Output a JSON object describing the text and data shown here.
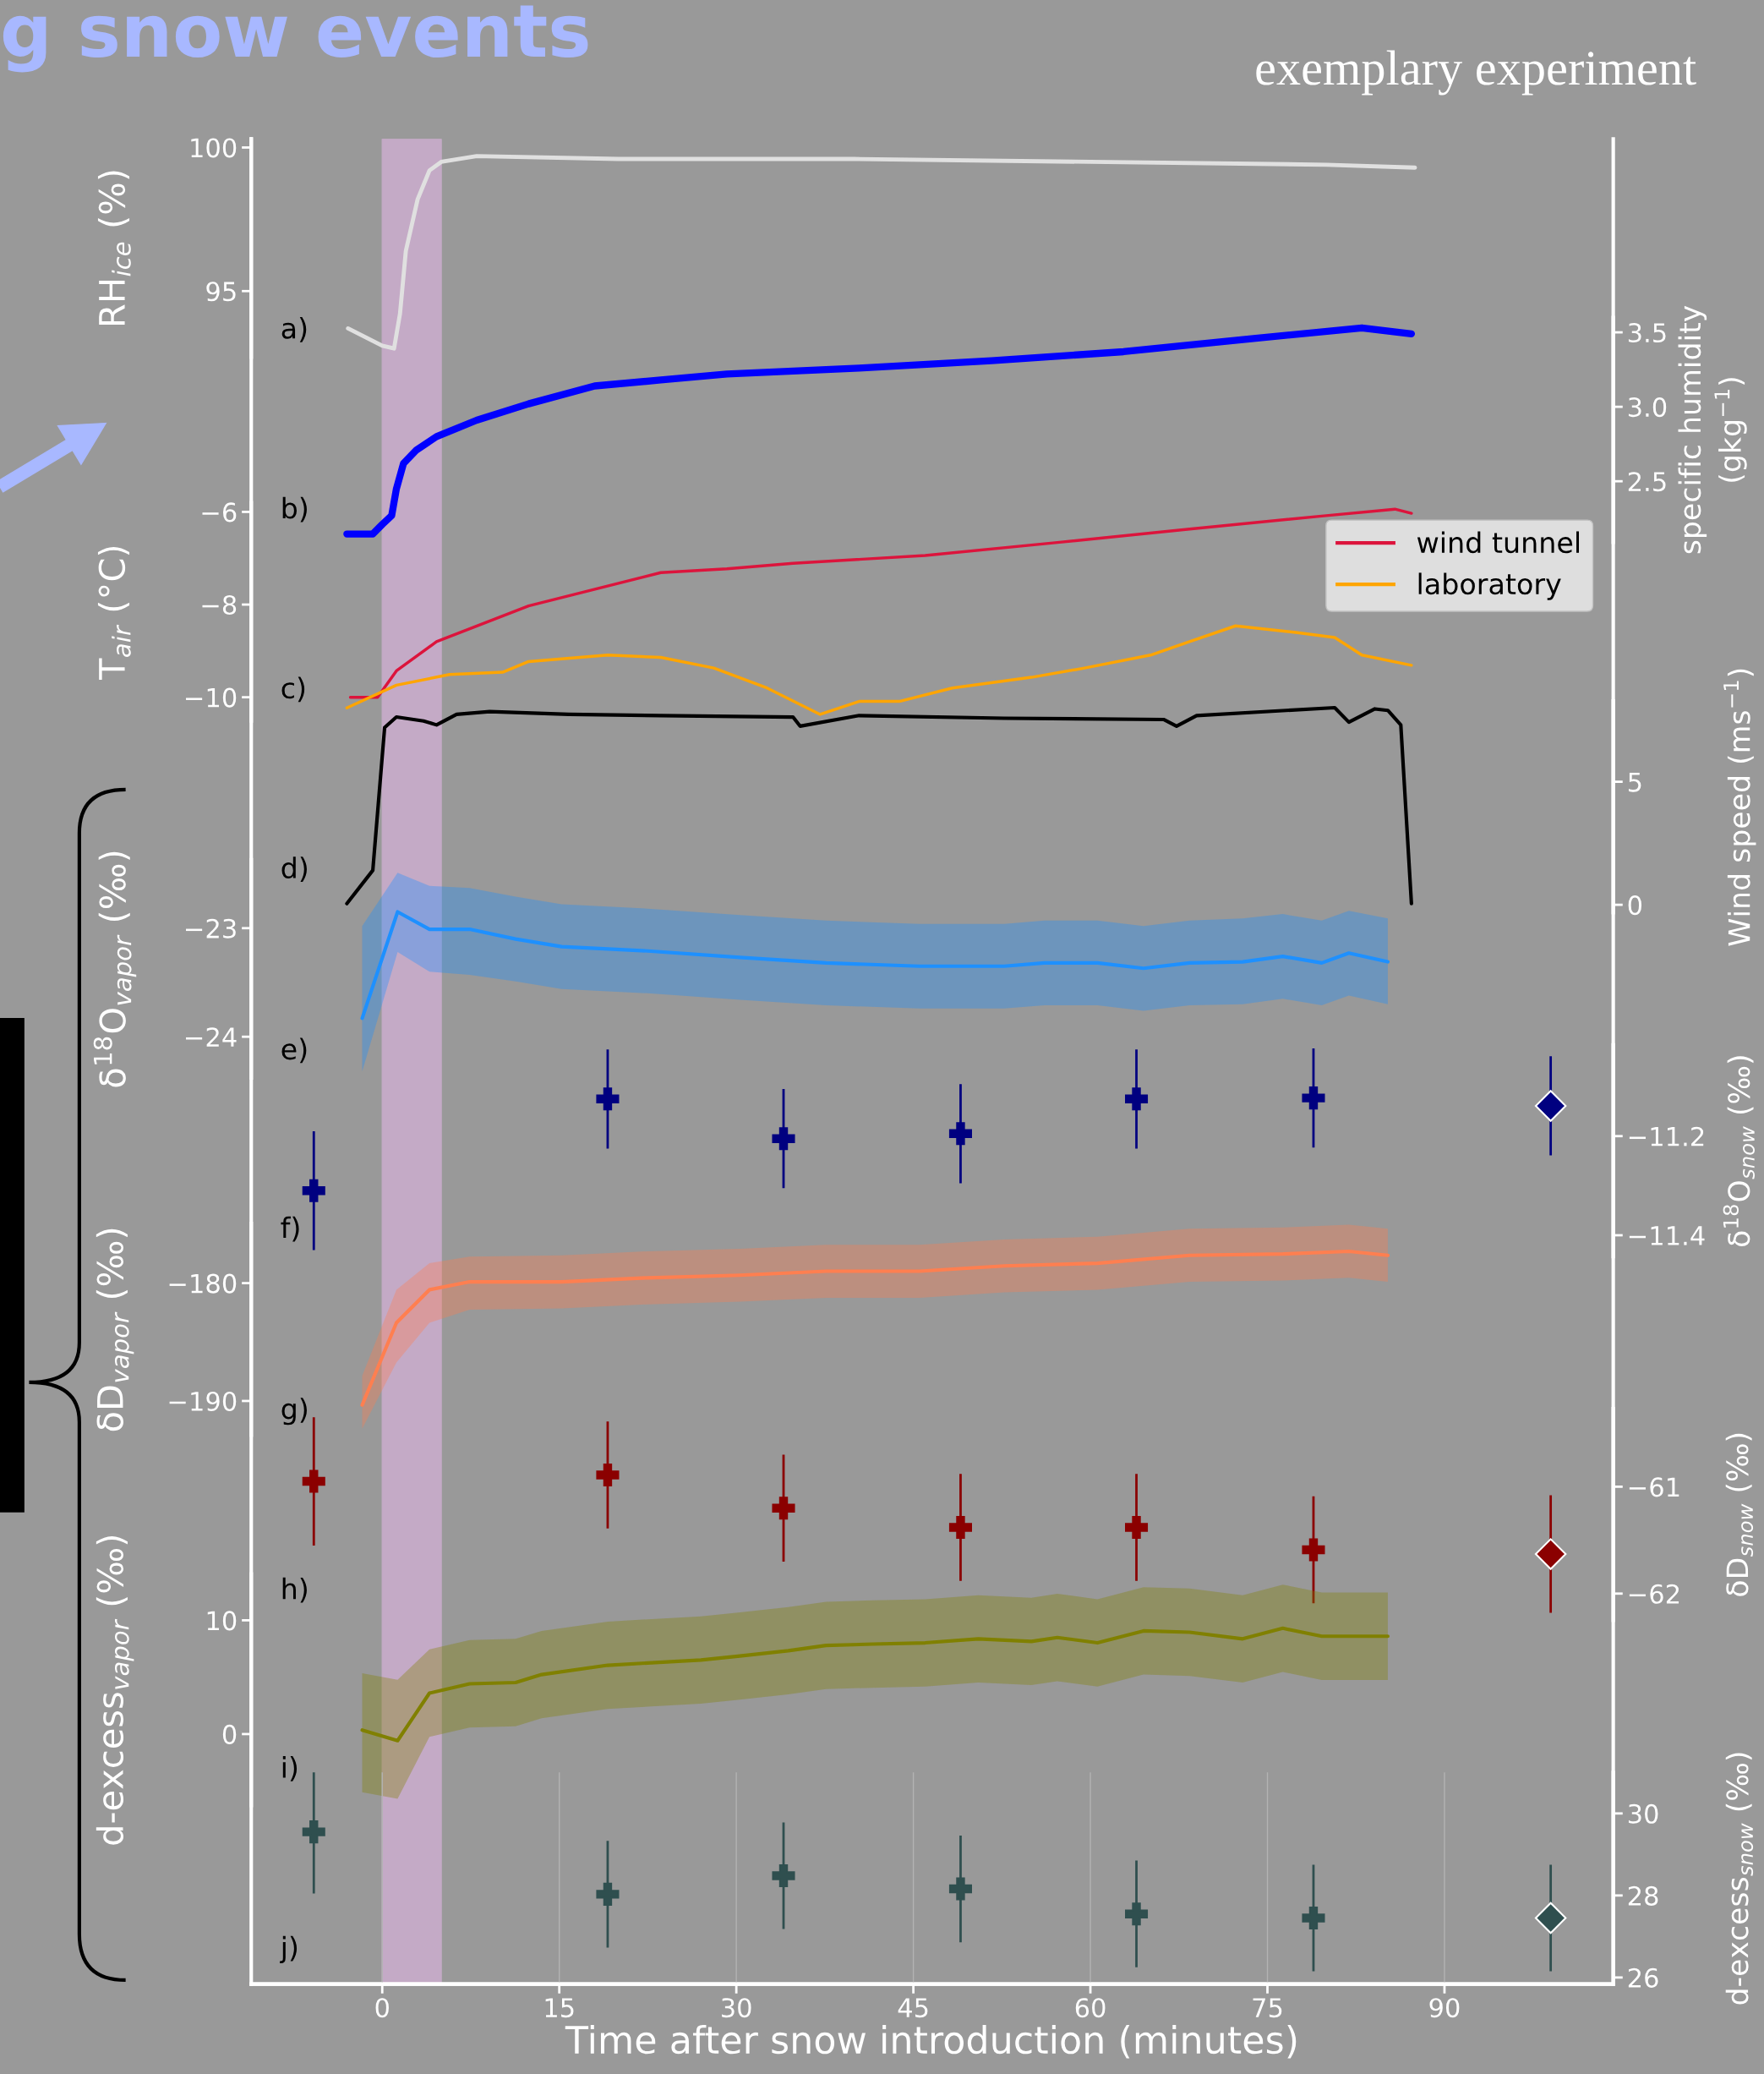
{
  "chart_data": [
    {
      "type": "line",
      "title": "g snow events",
      "subtitle": "exemplary experiment",
      "annotations": [
        "a)"
      ],
      "ylabel": "RH$_{ice}$ (%)",
      "xlim": [
        -11.1,
        104.3
      ],
      "ylim": [
        92.7,
        100.3
      ],
      "yticks": [
        95,
        100
      ],
      "tick_labels": "y",
      "grid": "x",
      "bands": [
        {
          "axis": "x",
          "from": 0,
          "to": 5,
          "color": "#c4aac6"
        }
      ],
      "series": [
        {
          "color": "#e0e0e0",
          "x": [
            -2.9,
            0,
            1,
            1.5,
            2,
            3,
            4,
            5,
            8,
            20,
            40,
            60,
            80,
            87.5
          ],
          "values": [
            93.7,
            93.1,
            93.0,
            94.2,
            96.4,
            98.2,
            99.2,
            99.5,
            99.7,
            99.6,
            99.6,
            99.5,
            99.4,
            99.3
          ]
        }
      ]
    },
    {
      "type": "line",
      "annotations": [
        "b)"
      ],
      "y2label": "specific humidity\n(gkg$^{−1}$)",
      "xlim": [
        -11.1,
        104.3
      ],
      "y2lim": [
        2.09,
        3.6
      ],
      "y2ticks": [
        2.5,
        {
          "value": 3.0,
          "label": "3.0"
        },
        3.5
      ],
      "tick_labels": "y",
      "grid": "x",
      "series": [
        {
          "color": "#0000ff",
          "axis": "y2",
          "x": [
            -3.0,
            -0.8,
            0,
            0.8,
            1.2,
            1.8,
            2.9,
            4.6,
            8.0,
            12.4,
            18.0,
            23.6,
            29.2,
            40.4,
            51.6,
            62.8,
            74.0,
            83.0,
            87.2
          ],
          "values": [
            2.146,
            2.146,
            2.21,
            2.27,
            2.45,
            2.62,
            2.71,
            2.8,
            2.91,
            3.02,
            3.14,
            3.18,
            3.22,
            3.26,
            3.31,
            3.37,
            3.46,
            3.53,
            3.49
          ]
        }
      ]
    },
    {
      "type": "line",
      "annotations": [
        "c)"
      ],
      "ylabel": "T$_{air}$ (°C)",
      "xlim": [
        -11.1,
        104.3
      ],
      "ylim": [
        -10.51,
        -5.8
      ],
      "yticks": [
        {
          "value": -10,
          "label": "−10"
        },
        {
          "value": -8,
          "label": "−8"
        },
        {
          "value": -6,
          "label": "−6"
        }
      ],
      "tick_labels": "y",
      "grid": "x",
      "legend": "top right",
      "series": [
        {
          "name": "wind tunnel",
          "color": "#dc143c",
          "x": [
            -2.7,
            -0.4,
            1.2,
            4.6,
            12.4,
            23.6,
            29.2,
            34.8,
            46.0,
            57.2,
            68.4,
            79.6,
            85.8,
            87.2
          ],
          "values": [
            -10.0,
            -10.0,
            -9.43,
            -8.8,
            -8.03,
            -7.31,
            -7.23,
            -7.11,
            -6.94,
            -6.66,
            -6.37,
            -6.09,
            -5.94,
            -6.03
          ]
        },
        {
          "name": "laboratory",
          "color": "#ffa500",
          "x": [
            -3.0,
            1.2,
            5.7,
            10.2,
            12.4,
            19.1,
            23.6,
            28.1,
            32.6,
            37.1,
            40.4,
            43.8,
            48.3,
            55.0,
            59.5,
            65.1,
            68.4,
            72.3,
            77.4,
            80.7,
            83.0,
            87.2
          ],
          "values": [
            -10.23,
            -9.74,
            -9.51,
            -9.46,
            -9.23,
            -9.09,
            -9.14,
            -9.37,
            -9.8,
            -10.37,
            -10.09,
            -10.09,
            -9.8,
            -9.57,
            -9.37,
            -9.09,
            -8.8,
            -8.46,
            -8.6,
            -8.71,
            -9.09,
            -9.31
          ]
        }
      ]
    },
    {
      "type": "line",
      "annotations": [
        "d)"
      ],
      "y2label": "Wind speed (ms$^{−1}$)",
      "xlim": [
        -11.1,
        104.3
      ],
      "y2lim": [
        -0.32,
        8.28
      ],
      "y2ticks": [
        0,
        5
      ],
      "tick_labels": "y",
      "grid": "x",
      "series": [
        {
          "color": "#000000",
          "axis": "y2",
          "x": [
            -3.0,
            -0.8,
            0.2,
            1.2,
            3.5,
            4.6,
            6.3,
            9.1,
            15.8,
            23.6,
            34.8,
            35.4,
            40.4,
            52.7,
            66.2,
            67.3,
            69.0,
            80.7,
            81.9,
            84.1,
            85.2,
            86.3,
            87.2
          ],
          "values": [
            0.05,
            1.4,
            7.2,
            7.63,
            7.47,
            7.31,
            7.74,
            7.85,
            7.74,
            7.69,
            7.63,
            7.26,
            7.69,
            7.58,
            7.53,
            7.26,
            7.69,
            8.01,
            7.42,
            7.96,
            7.9,
            7.31,
            0.05
          ]
        }
      ]
    },
    {
      "type": "line",
      "annotations": [
        "e)"
      ],
      "ylabel": "δ$^{18}$O$_{vapor}$ (‰)",
      "xlim": [
        -11.1,
        104.3
      ],
      "ylim": [
        -24.38,
        -22.37
      ],
      "yticks": [
        {
          "value": -24,
          "label": "−24"
        },
        {
          "value": -23,
          "label": "−23"
        }
      ],
      "tick_labels": "y",
      "grid": "x",
      "series": [
        {
          "color": "#1e90ff",
          "x": [
            -1.7,
            1.3,
            4.0,
            7.4,
            11.3,
            15.2,
            22.5,
            30.3,
            37.6,
            45.5,
            52.7,
            56.1,
            60.6,
            64.5,
            68.4,
            72.9,
            76.3,
            79.6,
            81.9,
            85.2
          ],
          "values": [
            -23.83,
            -22.85,
            -23.01,
            -23.01,
            -23.1,
            -23.17,
            -23.21,
            -23.27,
            -23.32,
            -23.35,
            -23.35,
            -23.32,
            -23.32,
            -23.37,
            -23.32,
            -23.31,
            -23.26,
            -23.32,
            -23.23,
            -23.31
          ],
          "upper": [
            -22.98,
            -22.49,
            -22.61,
            -22.63,
            -22.71,
            -22.78,
            -22.82,
            -22.88,
            -22.93,
            -22.96,
            -22.96,
            -22.93,
            -22.93,
            -22.98,
            -22.93,
            -22.91,
            -22.87,
            -22.93,
            -22.84,
            -22.91
          ],
          "lower": [
            -24.32,
            -23.22,
            -23.4,
            -23.43,
            -23.49,
            -23.56,
            -23.6,
            -23.66,
            -23.71,
            -23.74,
            -23.74,
            -23.71,
            -23.71,
            -23.76,
            -23.71,
            -23.7,
            -23.65,
            -23.71,
            -23.62,
            -23.7
          ]
        }
      ]
    },
    {
      "type": "scatter",
      "annotations": [
        "f)"
      ],
      "y2label": "δ$^{18}$O$_{snow}$ (‰)",
      "xlim": [
        -11.1,
        104.3
      ],
      "y2lim": [
        -11.443,
        -11.016
      ],
      "y2ticks": [
        {
          "value": -11.4,
          "label": "−11.4"
        },
        {
          "value": -11.2,
          "label": "−11.2"
        }
      ],
      "tick_labels": "y",
      "grid": "x",
      "series": [
        {
          "color": "#000080",
          "axis": "y2",
          "marker": "cross",
          "x": [
            -5.8,
            19.1,
            34.0,
            49.0,
            63.9,
            78.9
          ],
          "values": [
            -11.31,
            -11.125,
            -11.205,
            -11.195,
            -11.125,
            -11.123
          ],
          "errors": [
            0.12,
            0.1,
            0.1,
            0.1,
            0.1,
            0.1
          ]
        },
        {
          "color": "#000080",
          "axis": "y2",
          "marker": "diamond",
          "x": [
            99.0
          ],
          "values": [
            -11.139
          ],
          "errors": [
            0.1
          ]
        }
      ]
    },
    {
      "type": "line",
      "annotations": [
        "g)"
      ],
      "ylabel": "δD$_{vapor}$ (‰)",
      "xlim": [
        -11.1,
        104.3
      ],
      "ylim": [
        -192.9,
        -174.94
      ],
      "yticks": [
        {
          "value": -190,
          "label": "−190"
        },
        {
          "value": -180,
          "label": "−180"
        }
      ],
      "tick_labels": "y",
      "grid": "x",
      "series": [
        {
          "color": "#ff7f50",
          "x": [
            -1.7,
            1.2,
            4.0,
            7.4,
            15.2,
            22.5,
            30.3,
            37.6,
            45.5,
            52.7,
            60.6,
            68.4,
            76.3,
            81.9,
            85.2
          ],
          "values": [
            -190.34,
            -183.37,
            -180.56,
            -179.89,
            -179.89,
            -179.55,
            -179.33,
            -178.99,
            -178.99,
            -178.54,
            -178.31,
            -177.64,
            -177.53,
            -177.3,
            -177.64
          ],
          "upper": [
            -187.87,
            -180.56,
            -178.31,
            -177.75,
            -177.64,
            -177.3,
            -177.08,
            -176.74,
            -176.74,
            -176.29,
            -176.07,
            -175.39,
            -175.28,
            -175.05,
            -175.39
          ],
          "lower": [
            -192.36,
            -186.74,
            -183.37,
            -182.25,
            -182.14,
            -181.8,
            -181.57,
            -181.24,
            -181.24,
            -180.79,
            -180.56,
            -179.89,
            -179.78,
            -179.55,
            -179.89
          ]
        }
      ]
    },
    {
      "type": "scatter",
      "annotations": [
        "h)"
      ],
      "y2label": "δD$_{snow}$ (‰)",
      "xlim": [
        -11.1,
        104.3
      ],
      "y2lim": [
        -62.25,
        -60.27
      ],
      "y2ticks": [
        {
          "value": -62,
          "label": "−62"
        },
        {
          "value": -61,
          "label": "−61"
        }
      ],
      "tick_labels": "y",
      "grid": "x",
      "series": [
        {
          "color": "#8b0000",
          "axis": "y2",
          "marker": "cross",
          "x": [
            -5.8,
            19.1,
            34.0,
            49.0,
            63.9,
            78.9
          ],
          "values": [
            -60.95,
            -60.89,
            -61.2,
            -61.38,
            -61.38,
            -61.59
          ],
          "errors": [
            0.6,
            0.5,
            0.5,
            0.5,
            0.5,
            0.5
          ]
        },
        {
          "color": "#8b0000",
          "axis": "y2",
          "marker": "diamond",
          "x": [
            99.0
          ],
          "values": [
            -61.63
          ],
          "errors": [
            0.55
          ]
        }
      ]
    },
    {
      "type": "line",
      "annotations": [
        "i)"
      ],
      "ylabel": "d-excess$_{vapor}$ (‰)",
      "xlim": [
        -11.1,
        104.3
      ],
      "ylim": [
        -6.28,
        14.07
      ],
      "yticks": [
        0,
        10
      ],
      "tick_labels": "y",
      "grid": "x",
      "series": [
        {
          "color": "#808000",
          "x": [
            -1.7,
            1.3,
            4.0,
            7.4,
            11.3,
            13.5,
            19.1,
            27.0,
            30.3,
            34.4,
            37.6,
            41.6,
            46.0,
            50.5,
            55.0,
            57.2,
            60.6,
            64.5,
            68.4,
            72.9,
            76.3,
            79.6,
            85.2
          ],
          "values": [
            0.35,
            -0.58,
            3.6,
            4.42,
            4.53,
            5.23,
            6.05,
            6.51,
            6.86,
            7.33,
            7.79,
            7.91,
            8.02,
            8.37,
            8.14,
            8.49,
            8.02,
            9.07,
            8.95,
            8.37,
            9.3,
            8.6,
            8.6
          ],
          "upper": [
            5.35,
            4.77,
            7.44,
            8.26,
            8.37,
            9.07,
            9.89,
            10.35,
            10.7,
            11.17,
            11.63,
            11.75,
            11.86,
            12.21,
            11.98,
            12.33,
            11.86,
            12.91,
            12.79,
            12.21,
            13.14,
            12.44,
            12.44
          ],
          "lower": [
            -5.12,
            -5.7,
            -0.24,
            0.58,
            0.69,
            1.39,
            2.21,
            2.67,
            3.02,
            3.49,
            3.95,
            4.07,
            4.18,
            4.53,
            4.3,
            4.65,
            4.18,
            5.23,
            5.11,
            4.53,
            5.46,
            4.76,
            4.76
          ]
        }
      ]
    },
    {
      "type": "scatter",
      "annotations": [
        "j)"
      ],
      "y2label": "d-excess$_{snow}$ (‰)",
      "xlabel": "Time after snow introduction (minutes)",
      "xlim": [
        -11.1,
        104.3
      ],
      "xticks": [
        0,
        15,
        30,
        45,
        60,
        75,
        90
      ],
      "y2lim": [
        25.84,
        31.0
      ],
      "y2ticks": [
        26,
        28,
        30
      ],
      "grid": "x",
      "series": [
        {
          "color": "#2f4f4f",
          "axis": "y2",
          "marker": "cross",
          "x": [
            -5.8,
            19.1,
            34.0,
            49.0,
            63.9,
            78.9
          ],
          "values": [
            29.55,
            28.03,
            28.48,
            28.16,
            27.55,
            27.45
          ],
          "errors": [
            1.5,
            1.3,
            1.3,
            1.3,
            1.3,
            1.3
          ]
        },
        {
          "color": "#2f4f4f",
          "axis": "y2",
          "marker": "diamond",
          "x": [
            99.0
          ],
          "values": [
            27.45
          ],
          "errors": [
            1.3
          ]
        }
      ]
    }
  ]
}
